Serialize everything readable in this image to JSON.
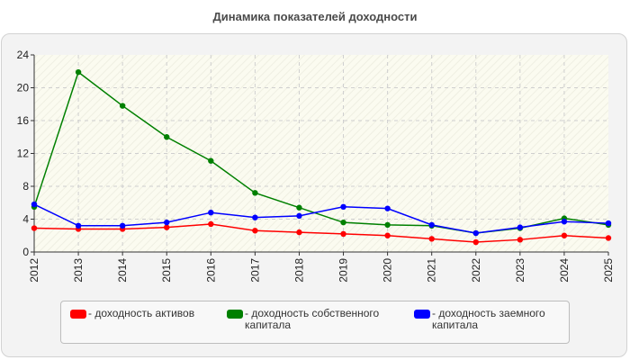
{
  "chart_data": {
    "type": "line",
    "title": "Динамика показателей доходности",
    "xlabel": "",
    "ylabel": "",
    "x": [
      "2012",
      "2013",
      "2014",
      "2015",
      "2016",
      "2017",
      "2018",
      "2019",
      "2020",
      "2021",
      "2022",
      "2023",
      "2024",
      "2025"
    ],
    "ylim": [
      0,
      24
    ],
    "yticks": [
      "0",
      "4",
      "8",
      "12",
      "16",
      "20",
      "24"
    ],
    "grid": true,
    "legend_position": "bottom",
    "series": [
      {
        "name": "- доходность активов",
        "color": "#ff0000",
        "values": [
          2.9,
          2.8,
          2.8,
          3.0,
          3.4,
          2.6,
          2.4,
          2.2,
          2.0,
          1.6,
          1.2,
          1.5,
          2.0,
          1.7
        ]
      },
      {
        "name": "- доходность собственного капитала",
        "color": "#008000",
        "values": [
          5.5,
          21.9,
          17.8,
          14.0,
          11.1,
          7.2,
          5.4,
          3.6,
          3.3,
          3.2,
          2.3,
          2.9,
          4.1,
          3.3
        ]
      },
      {
        "name": "- доходность заемного капитала",
        "color": "#0000ff",
        "values": [
          5.8,
          3.2,
          3.2,
          3.6,
          4.8,
          4.2,
          4.4,
          5.5,
          5.3,
          3.3,
          2.3,
          3.0,
          3.7,
          3.5
        ]
      }
    ]
  }
}
